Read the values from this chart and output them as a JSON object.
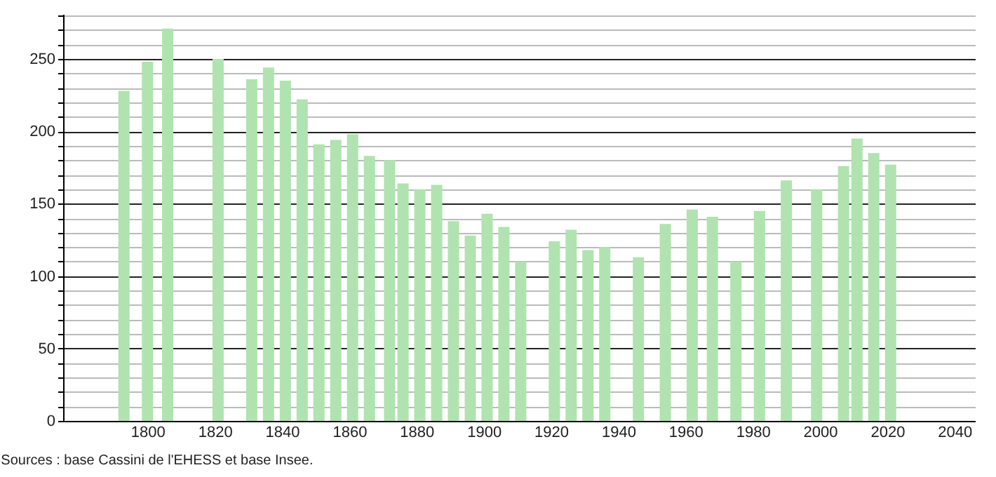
{
  "chart_data": {
    "type": "bar",
    "x": [
      1793,
      1800,
      1806,
      1821,
      1831,
      1836,
      1841,
      1846,
      1851,
      1856,
      1861,
      1866,
      1872,
      1876,
      1881,
      1886,
      1891,
      1896,
      1901,
      1906,
      1911,
      1921,
      1926,
      1931,
      1936,
      1946,
      1954,
      1962,
      1968,
      1975,
      1982,
      1990,
      1999,
      2006,
      2007,
      2011,
      2016,
      2020,
      2021
    ],
    "values": [
      228,
      248,
      271,
      250,
      236,
      244,
      235,
      222,
      191,
      194,
      198,
      183,
      180,
      164,
      160,
      163,
      138,
      128,
      143,
      134,
      110,
      124,
      132,
      118,
      120,
      113,
      136,
      146,
      141,
      110,
      145,
      166,
      160,
      null,
      176,
      195,
      185,
      null,
      177
    ],
    "color": "#b0e3b0",
    "xlim": [
      1777,
      2044
    ],
    "xticks": [
      1800,
      1820,
      1840,
      1860,
      1880,
      1900,
      1920,
      1940,
      1960,
      1980,
      2000,
      2020,
      2040
    ],
    "ylim": [
      0,
      281
    ],
    "yticks": [
      0,
      {
        "value": 10,
        "label": null
      },
      {
        "value": 20,
        "label": null
      },
      {
        "value": 30,
        "label": null
      },
      {
        "value": 40,
        "label": null
      },
      50,
      {
        "value": 60,
        "label": null
      },
      {
        "value": 70,
        "label": null
      },
      {
        "value": 80,
        "label": null
      },
      {
        "value": 90,
        "label": null
      },
      100,
      {
        "value": 110,
        "label": null
      },
      {
        "value": 120,
        "label": null
      },
      {
        "value": 130,
        "label": null
      },
      {
        "value": 140,
        "label": null
      },
      150,
      {
        "value": 160,
        "label": null
      },
      {
        "value": 170,
        "label": null
      },
      {
        "value": 180,
        "label": null
      },
      {
        "value": 190,
        "label": null
      },
      200,
      {
        "value": 210,
        "label": null
      },
      {
        "value": 220,
        "label": null
      },
      {
        "value": 230,
        "label": null
      },
      {
        "value": 240,
        "label": null
      },
      250,
      {
        "value": 260,
        "label": null
      },
      {
        "value": 270,
        "label": null
      },
      {
        "value": 280,
        "label": null
      }
    ],
    "grid": "y",
    "annotations": [
      "Sources : base Cassini de l'EHESS et base Insee."
    ]
  }
}
